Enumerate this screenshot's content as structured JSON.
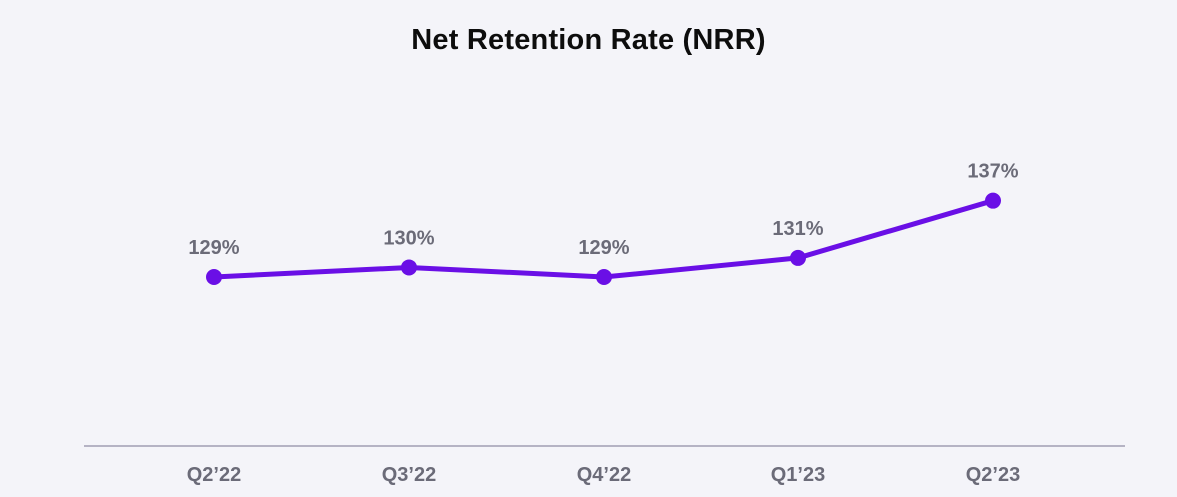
{
  "chart_data": {
    "type": "line",
    "title": "Net Retention Rate (NRR)",
    "categories": [
      "Q2’22",
      "Q3’22",
      "Q4’22",
      "Q1’23",
      "Q2’23"
    ],
    "series": [
      {
        "values": [
          129,
          130,
          129,
          131,
          137
        ]
      }
    ],
    "data_labels": [
      "129%",
      "130%",
      "129%",
      "131%",
      "137%"
    ],
    "ylim": [
      100,
      145
    ],
    "grid": false,
    "colors": {
      "line": "#6a0fe6",
      "baseline": "#b5b3c4",
      "labels": "#6b6b78",
      "background": "#f4f4f9"
    }
  }
}
